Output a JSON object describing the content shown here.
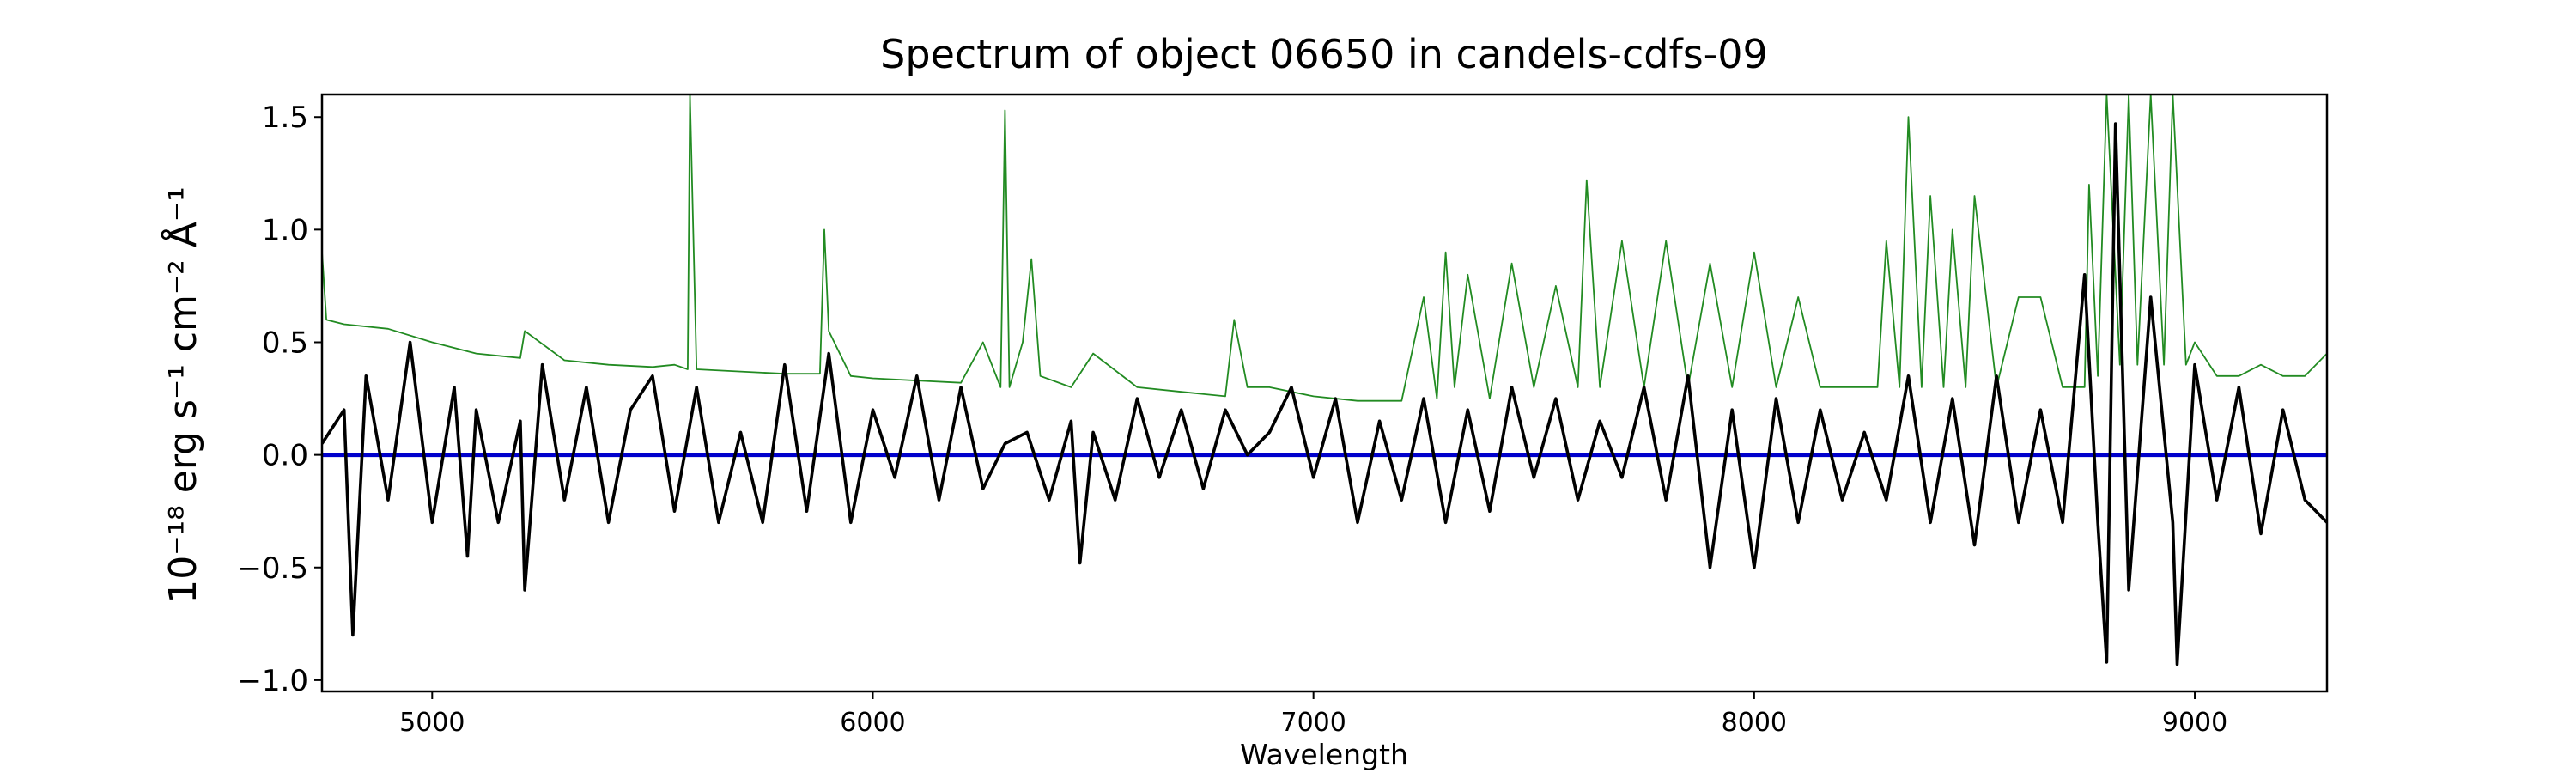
{
  "chart_data": {
    "type": "line",
    "title": "Spectrum of object 06650 in candels-cdfs-09",
    "xlabel": "Wavelength",
    "ylabel": "10⁻¹⁸ erg s⁻¹ cm⁻² Å⁻¹",
    "xlim": [
      4750,
      9300
    ],
    "ylim": [
      -1.05,
      1.6
    ],
    "xticks": [
      5000,
      6000,
      7000,
      8000,
      9000
    ],
    "xtick_labels": [
      "5000",
      "6000",
      "7000",
      "8000",
      "9000"
    ],
    "yticks": [
      -1.0,
      -0.5,
      0.0,
      0.5,
      1.0,
      1.5
    ],
    "ytick_labels": [
      "−1.0",
      "−0.5",
      "0.0",
      "0.5",
      "1.0",
      "1.5"
    ],
    "grid": false,
    "colors": {
      "flux": "#000000",
      "error": "#228b22",
      "zero": "#0000cc"
    },
    "series": [
      {
        "role": "flux",
        "x": [
          4750,
          4800,
          4820,
          4850,
          4900,
          4950,
          5000,
          5050,
          5080,
          5100,
          5150,
          5200,
          5210,
          5250,
          5300,
          5350,
          5400,
          5450,
          5500,
          5550,
          5600,
          5650,
          5700,
          5750,
          5800,
          5850,
          5900,
          5950,
          6000,
          6050,
          6100,
          6150,
          6200,
          6250,
          6300,
          6350,
          6400,
          6450,
          6470,
          6500,
          6550,
          6600,
          6650,
          6700,
          6750,
          6800,
          6850,
          6900,
          6950,
          7000,
          7050,
          7100,
          7150,
          7200,
          7250,
          7300,
          7350,
          7400,
          7450,
          7500,
          7550,
          7600,
          7650,
          7700,
          7750,
          7800,
          7850,
          7900,
          7950,
          8000,
          8050,
          8100,
          8150,
          8200,
          8250,
          8300,
          8350,
          8400,
          8450,
          8500,
          8550,
          8600,
          8650,
          8700,
          8750,
          8780,
          8800,
          8820,
          8850,
          8900,
          8950,
          8960,
          9000,
          9050,
          9100,
          9150,
          9200,
          9250,
          9300
        ],
        "y": [
          0.05,
          0.2,
          -0.8,
          0.35,
          -0.2,
          0.5,
          -0.3,
          0.3,
          -0.45,
          0.2,
          -0.3,
          0.15,
          -0.6,
          0.4,
          -0.2,
          0.3,
          -0.3,
          0.2,
          0.35,
          -0.25,
          0.3,
          -0.3,
          0.1,
          -0.3,
          0.4,
          -0.25,
          0.45,
          -0.3,
          0.2,
          -0.1,
          0.35,
          -0.2,
          0.3,
          -0.15,
          0.05,
          0.1,
          -0.2,
          0.15,
          -0.48,
          0.1,
          -0.2,
          0.25,
          -0.1,
          0.2,
          -0.15,
          0.2,
          0.0,
          0.1,
          0.3,
          -0.1,
          0.25,
          -0.3,
          0.15,
          -0.2,
          0.25,
          -0.3,
          0.2,
          -0.25,
          0.3,
          -0.1,
          0.25,
          -0.2,
          0.15,
          -0.1,
          0.3,
          -0.2,
          0.35,
          -0.5,
          0.2,
          -0.5,
          0.25,
          -0.3,
          0.2,
          -0.2,
          0.1,
          -0.2,
          0.35,
          -0.3,
          0.25,
          -0.4,
          0.35,
          -0.3,
          0.2,
          -0.3,
          0.8,
          -0.3,
          -0.92,
          1.47,
          -0.6,
          0.7,
          -0.3,
          -0.93,
          0.4,
          -0.2,
          0.3,
          -0.35,
          0.2,
          -0.2,
          -0.3
        ]
      },
      {
        "role": "error",
        "x": [
          4750,
          4760,
          4800,
          4900,
          5000,
          5100,
          5200,
          5210,
          5300,
          5400,
          5500,
          5550,
          5580,
          5585,
          5600,
          5700,
          5800,
          5880,
          5890,
          5900,
          5950,
          6000,
          6100,
          6200,
          6250,
          6290,
          6300,
          6310,
          6340,
          6360,
          6380,
          6450,
          6500,
          6600,
          6700,
          6800,
          6820,
          6850,
          6900,
          7000,
          7100,
          7200,
          7250,
          7280,
          7300,
          7320,
          7350,
          7400,
          7450,
          7500,
          7550,
          7600,
          7620,
          7650,
          7700,
          7750,
          7800,
          7850,
          7900,
          7950,
          8000,
          8050,
          8100,
          8150,
          8200,
          8250,
          8280,
          8300,
          8330,
          8350,
          8380,
          8400,
          8430,
          8450,
          8480,
          8500,
          8550,
          8600,
          8650,
          8700,
          8750,
          8760,
          8780,
          8800,
          8830,
          8850,
          8870,
          8900,
          8930,
          8950,
          8980,
          9000,
          9050,
          9100,
          9150,
          9200,
          9250,
          9300
        ],
        "y": [
          0.9,
          0.6,
          0.58,
          0.56,
          0.5,
          0.45,
          0.43,
          0.55,
          0.42,
          0.4,
          0.39,
          0.4,
          0.38,
          1.6,
          0.38,
          0.37,
          0.36,
          0.36,
          1.0,
          0.55,
          0.35,
          0.34,
          0.33,
          0.32,
          0.5,
          0.3,
          1.53,
          0.3,
          0.5,
          0.87,
          0.35,
          0.3,
          0.45,
          0.3,
          0.28,
          0.26,
          0.6,
          0.3,
          0.3,
          0.26,
          0.24,
          0.24,
          0.7,
          0.25,
          0.9,
          0.3,
          0.8,
          0.25,
          0.85,
          0.3,
          0.75,
          0.3,
          1.22,
          0.3,
          0.95,
          0.3,
          0.95,
          0.3,
          0.85,
          0.3,
          0.9,
          0.3,
          0.7,
          0.3,
          0.3,
          0.3,
          0.3,
          0.95,
          0.3,
          1.5,
          0.3,
          1.15,
          0.3,
          1.0,
          0.3,
          1.15,
          0.3,
          0.7,
          0.7,
          0.3,
          0.3,
          1.2,
          0.35,
          1.6,
          0.4,
          1.6,
          0.4,
          1.6,
          0.4,
          1.6,
          0.4,
          0.5,
          0.35,
          0.35,
          0.4,
          0.35,
          0.35,
          0.45
        ]
      },
      {
        "role": "zero",
        "x": [
          4750,
          9300
        ],
        "y": [
          0.0,
          0.0
        ]
      }
    ]
  }
}
